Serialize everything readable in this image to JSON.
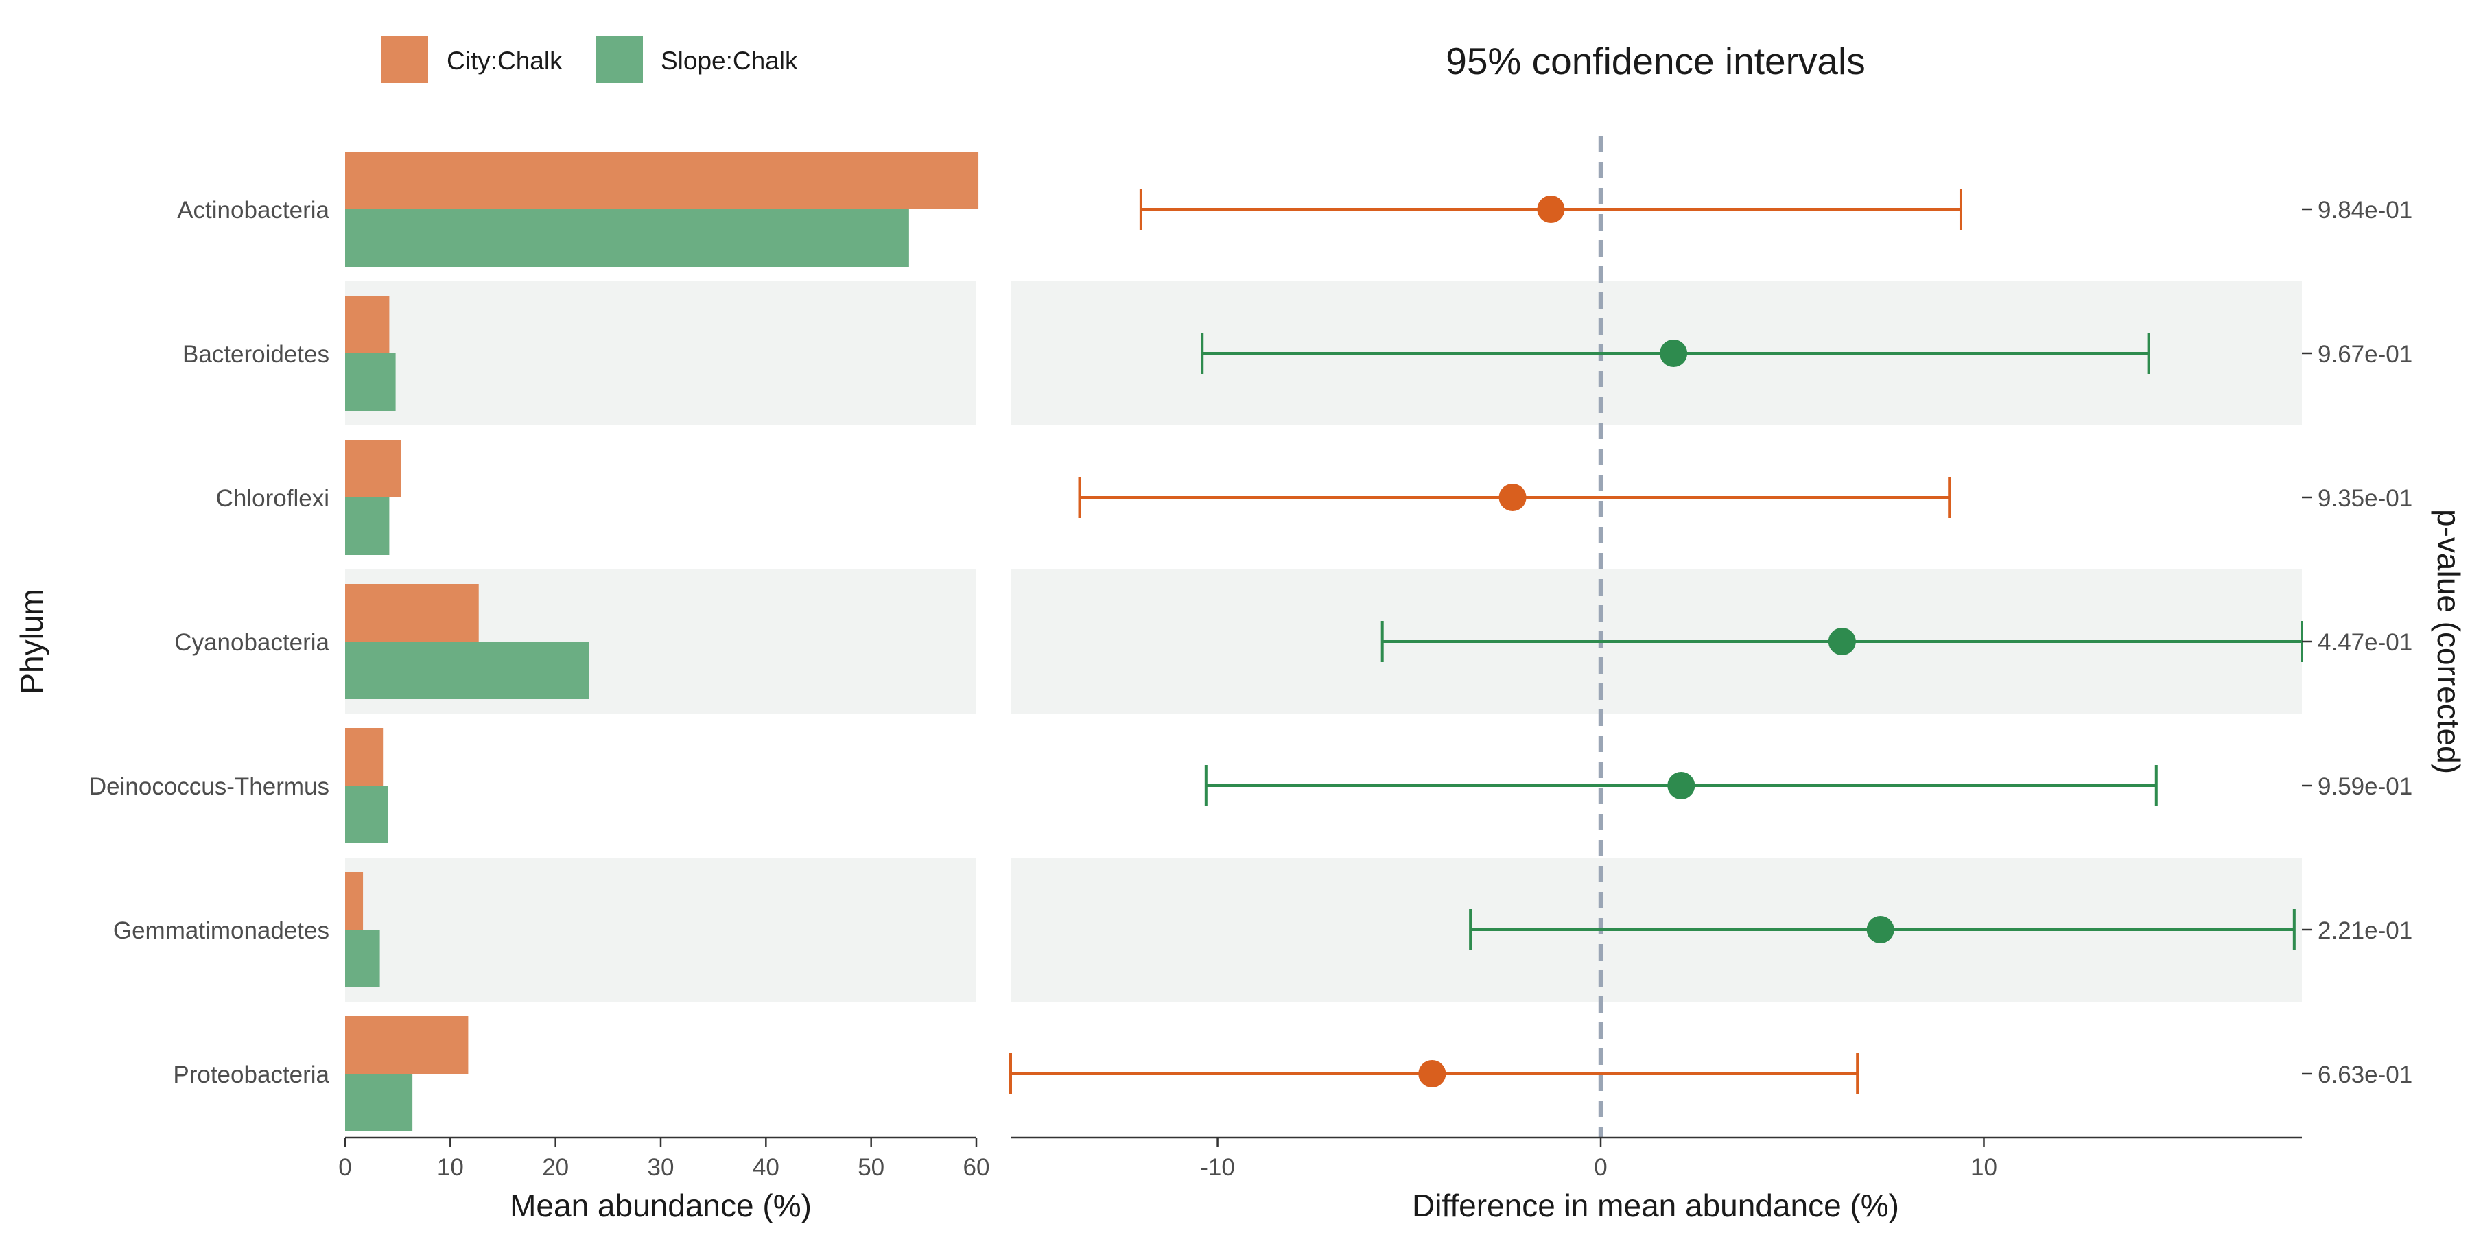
{
  "chart_data": [
    {
      "type": "bar",
      "orientation": "horizontal",
      "categories": [
        "Actinobacteria",
        "Bacteroidetes",
        "Chloroflexi",
        "Cyanobacteria",
        "Deinococcus-Thermus",
        "Gemmatimonadetes",
        "Proteobacteria"
      ],
      "series": [
        {
          "name": "City:Chalk",
          "color": "#E0895A",
          "values": [
            60.2,
            4.2,
            5.3,
            12.7,
            3.6,
            1.7,
            11.7
          ]
        },
        {
          "name": "Slope:Chalk",
          "color": "#6BAE83",
          "values": [
            53.6,
            4.8,
            4.2,
            23.2,
            4.1,
            3.3,
            6.4
          ]
        }
      ],
      "ylabel": "Phylum",
      "xlabel": "Mean abundance (%)",
      "xlim": [
        0,
        60
      ],
      "xticks": [
        "0",
        "10",
        "20",
        "30",
        "40",
        "50",
        "60"
      ],
      "legend": "top-left",
      "stripes": "alternating light grey rows"
    },
    {
      "type": "scatter",
      "subtype": "confidence-interval",
      "title": "95% confidence intervals",
      "xlabel": "Difference in mean abundance (%)",
      "secondary_ylabel": "p-value (corrected)",
      "xlim": [
        -15.4,
        18.3
      ],
      "xticks": [
        "-10",
        "0",
        "10"
      ],
      "reference_line": 0,
      "points": [
        {
          "category": "Actinobacteria",
          "estimate": -1.3,
          "lower": -12.0,
          "upper": 9.4,
          "group": "City:Chalk",
          "color": "#D95F1E",
          "p_value": "9.84e-01"
        },
        {
          "category": "Bacteroidetes",
          "estimate": 1.9,
          "lower": -10.4,
          "upper": 14.3,
          "group": "Slope:Chalk",
          "color": "#2E8B4E",
          "p_value": "9.67e-01"
        },
        {
          "category": "Chloroflexi",
          "estimate": -2.3,
          "lower": -13.6,
          "upper": 9.1,
          "group": "City:Chalk",
          "color": "#D95F1E",
          "p_value": "9.35e-01"
        },
        {
          "category": "Cyanobacteria",
          "estimate": 6.3,
          "lower": -5.7,
          "upper": 18.3,
          "group": "Slope:Chalk",
          "color": "#2E8B4E",
          "p_value": "4.47e-01"
        },
        {
          "category": "Deinococcus-Thermus",
          "estimate": 2.1,
          "lower": -10.3,
          "upper": 14.5,
          "group": "Slope:Chalk",
          "color": "#2E8B4E",
          "p_value": "9.59e-01"
        },
        {
          "category": "Gemmatimonadetes",
          "estimate": 7.3,
          "lower": -3.4,
          "upper": 18.1,
          "group": "Slope:Chalk",
          "color": "#2E8B4E",
          "p_value": "2.21e-01"
        },
        {
          "category": "Proteobacteria",
          "estimate": -4.4,
          "lower": -15.4,
          "upper": 6.7,
          "group": "City:Chalk",
          "color": "#D95F1E",
          "p_value": "6.63e-01"
        }
      ]
    }
  ]
}
